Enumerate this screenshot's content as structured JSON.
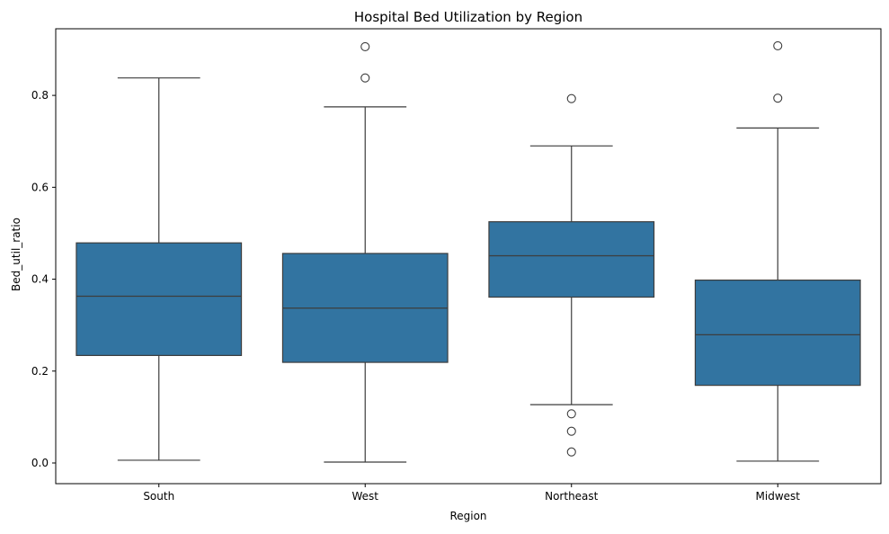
{
  "chart_data": {
    "type": "box",
    "title": "Hospital Bed Utilization by Region",
    "xlabel": "Region",
    "ylabel": "Bed_util_ratio",
    "ylim": [
      -0.045,
      0.945
    ],
    "yticks": [
      0.0,
      0.2,
      0.4,
      0.6,
      0.8
    ],
    "ytick_labels": [
      "0.0",
      "0.2",
      "0.4",
      "0.6",
      "0.8"
    ],
    "grid": false,
    "box_color": "#3274a1",
    "categories": [
      "South",
      "West",
      "Northeast",
      "Midwest"
    ],
    "boxes": [
      {
        "category": "South",
        "whisker_low": 0.006,
        "q1": 0.234,
        "median": 0.363,
        "q3": 0.479,
        "whisker_high": 0.838,
        "outliers": []
      },
      {
        "category": "West",
        "whisker_low": 0.002,
        "q1": 0.219,
        "median": 0.337,
        "q3": 0.456,
        "whisker_high": 0.775,
        "outliers": [
          0.838,
          0.906
        ]
      },
      {
        "category": "Northeast",
        "whisker_low": 0.127,
        "q1": 0.361,
        "median": 0.451,
        "q3": 0.525,
        "whisker_high": 0.69,
        "outliers": [
          0.107,
          0.069,
          0.024,
          0.793
        ]
      },
      {
        "category": "Midwest",
        "whisker_low": 0.004,
        "q1": 0.169,
        "median": 0.279,
        "q3": 0.398,
        "whisker_high": 0.729,
        "outliers": [
          0.794,
          0.908
        ]
      }
    ]
  }
}
